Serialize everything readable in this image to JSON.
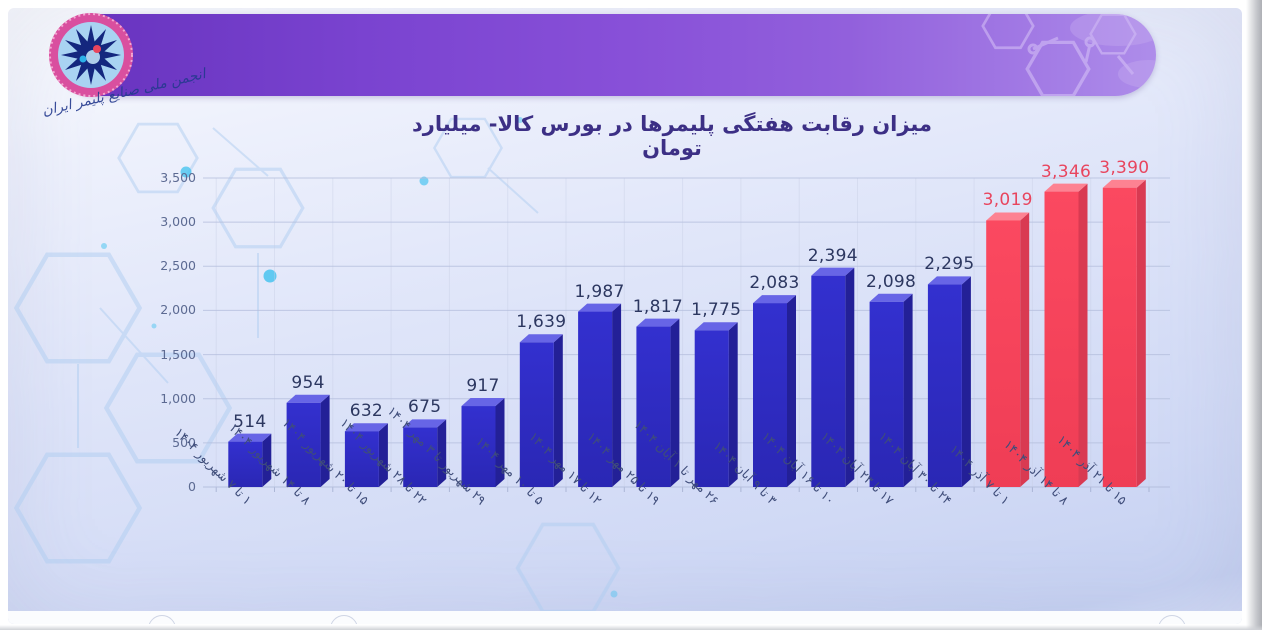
{
  "org": {
    "signature_text": "انجمن ملی صنایع پلیمر ایران"
  },
  "banner": {
    "accent_dark": "#6632bd",
    "accent_light": "#ae8dea"
  },
  "chart_data": {
    "type": "bar",
    "title": "میزان رقابت هفتگی پلیمرها در بورس کالا- میلیارد تومان",
    "xlabel": "",
    "ylabel": "",
    "ylim": [
      0,
      3500
    ],
    "ytick_step": 500,
    "yticks": [
      "0",
      "500",
      "1,000",
      "1,500",
      "2,000",
      "2,500",
      "3,000",
      "3,500"
    ],
    "grid": true,
    "legend": "none",
    "categories": [
      "۱ تا ۷ شهریور ۱۴۰۴",
      "۸ تا ۱۴ شهریور ۱۴۰۴",
      "۱۵ تا ۲۰ شهریور ۱۴۰۴",
      "۲۲ تا ۲۸ شهریور ۱۴۰۴",
      "۲۹ شهریور تا ۳ مهر ۱۴۰۴",
      "۵ تا ۱۰ مهر ۱۴۰۴",
      "۱۲ تا ۱۷ مهر ۱۴۰۴",
      "۱۹ تا ۲۵ مهر ۱۴۰۴",
      "۲۶ مهر تا ۱ آبان ۱۴۰۴",
      "۳ تا ۹ آبان ۱۴۰۴",
      "۱۰ تا ۱۶ آبان ۱۴۰۴",
      "۱۷ تا ۲۳ آبان ۱۴۰۴",
      "۲۴ تا ۳۰ آبان ۱۴۰۴",
      "۱ تا ۷ آذر ۱۴۰۴",
      "۸ تا ۱۴ آذر ۱۴۰۴",
      "۱۵ تا ۲۱ آذر ۱۴۰۴"
    ],
    "values": [
      514,
      954,
      632,
      675,
      917,
      1639,
      1987,
      1817,
      1775,
      2083,
      2394,
      2098,
      2295,
      3019,
      3346,
      3390
    ],
    "value_labels": [
      "514",
      "954",
      "632",
      "675",
      "917",
      "1,639",
      "1,987",
      "1,817",
      "1,775",
      "2,083",
      "2,394",
      "2,098",
      "2,295",
      "3,019",
      "3,346",
      "3,390"
    ],
    "bar_colors": [
      "blue",
      "blue",
      "blue",
      "blue",
      "blue",
      "blue",
      "blue",
      "blue",
      "blue",
      "blue",
      "blue",
      "blue",
      "blue",
      "red",
      "red",
      "red"
    ],
    "colors": {
      "blue_front": "#3330cf",
      "blue_top": "#6765e6",
      "blue_side": "#232097",
      "red_front": "#fb4960",
      "red_top": "#fd8292",
      "red_side": "#d93a52",
      "value_label_blue": "#2c3760",
      "value_label_red": "#e8455e",
      "grid": "#b4bedd",
      "axis_text": "#5c6a92",
      "xlabel_text": "#3f4d7a"
    }
  }
}
